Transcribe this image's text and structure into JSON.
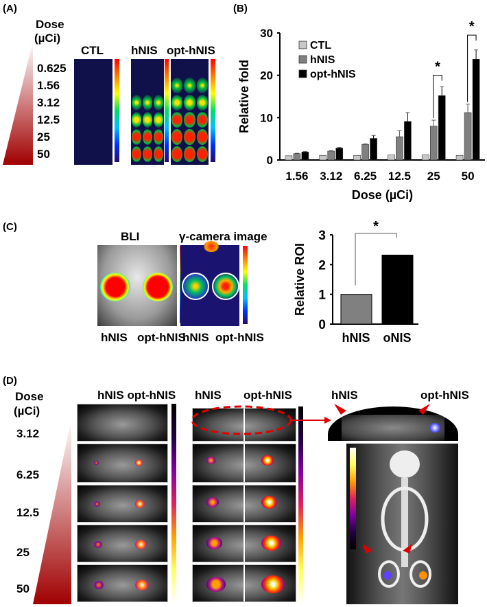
{
  "panels": {
    "a": {
      "label": "(A)",
      "dose_header": "Dose",
      "dose_unit": "(µCi)",
      "doses": [
        "0.625",
        "1.56",
        "3.12",
        "12.5",
        "25",
        "50"
      ],
      "columns": [
        "CTL",
        "hNIS",
        "opt-hNIS"
      ]
    },
    "b": {
      "label": "(B)"
    },
    "c": {
      "label": "(C)",
      "bli_title": "BLI",
      "gamma_title": "γ-camera image",
      "bli_labels": [
        "hNIS",
        "opt-hNIS"
      ],
      "gamma_labels": [
        "hNIS",
        "opt-hNIS"
      ]
    },
    "d": {
      "label": "(D)",
      "dose_header": "Dose",
      "dose_unit": "(µCi)",
      "doses": [
        "3.12",
        "6.25",
        "12.5",
        "25",
        "50"
      ],
      "left_header": "hNIS opt-hNIS",
      "mid_headers": [
        "hNIS",
        "opt-hNIS"
      ],
      "right_headers": [
        "hNIS",
        "opt-hNIS"
      ]
    }
  },
  "colors": {
    "ctl": "#c8c8c8",
    "hnis": "#808080",
    "opt": "#000000",
    "arrow": "#e00000"
  },
  "chart_data": [
    {
      "type": "bar",
      "panel": "B",
      "categories": [
        "1.56",
        "3.12",
        "6.25",
        "12.5",
        "25",
        "50"
      ],
      "xlabel": "Dose (µCi)",
      "ylabel": "Relative fold",
      "ylim": [
        0,
        30
      ],
      "yticks": [
        "0",
        "10",
        "20",
        "30"
      ],
      "legend": "top-left",
      "grid": false,
      "series": [
        {
          "name": "CTL",
          "values": [
            1.0,
            1.1,
            1.1,
            1.2,
            1.2,
            1.1
          ],
          "errors": [
            0,
            0,
            0,
            0,
            0,
            0
          ]
        },
        {
          "name": "hNIS",
          "values": [
            1.5,
            2.1,
            3.7,
            5.5,
            8.0,
            11.2
          ],
          "errors": [
            0.1,
            0.1,
            0.1,
            1.4,
            1.4,
            2.0
          ]
        },
        {
          "name": "opt-hNIS",
          "values": [
            1.9,
            2.8,
            5.1,
            9.1,
            15.2,
            23.8
          ],
          "errors": [
            0.1,
            0.2,
            0.7,
            2.1,
            2.1,
            2.2
          ]
        }
      ],
      "annotations": [
        {
          "text": "*",
          "category": "25"
        },
        {
          "text": "*",
          "category": "50"
        }
      ]
    },
    {
      "type": "bar",
      "panel": "C",
      "categories": [
        "hNIS",
        "oNIS"
      ],
      "values": [
        1.0,
        2.32
      ],
      "ylabel": "Relative ROI",
      "ylim": [
        0,
        3
      ],
      "yticks": [
        "0",
        "1",
        "2",
        "3"
      ],
      "grid": false,
      "annotations": [
        {
          "text": "*"
        }
      ]
    }
  ]
}
